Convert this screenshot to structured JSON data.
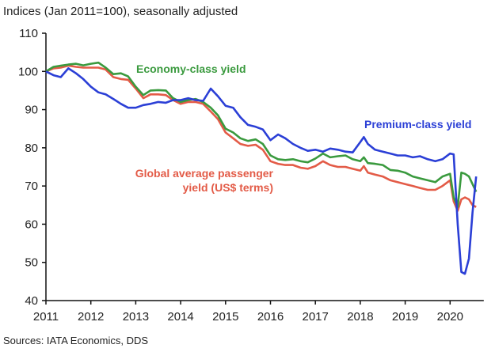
{
  "chart_data": {
    "type": "line",
    "title": "Indices (Jan 2011=100), seasonally adjusted",
    "source": "Sources: IATA Economics, DDS",
    "xlabel": "",
    "ylabel": "",
    "ylim": [
      40,
      110
    ],
    "yticks": [
      40,
      50,
      60,
      70,
      80,
      90,
      100,
      110
    ],
    "xlim": [
      2011.0,
      2020.75
    ],
    "xticks": [
      2011,
      2012,
      2013,
      2014,
      2015,
      2016,
      2017,
      2018,
      2019,
      2020
    ],
    "grid": false,
    "legend": "inline-labels",
    "x": [
      2011.0,
      2011.17,
      2011.33,
      2011.5,
      2011.67,
      2011.83,
      2012.0,
      2012.17,
      2012.33,
      2012.5,
      2012.67,
      2012.83,
      2013.0,
      2013.17,
      2013.33,
      2013.5,
      2013.67,
      2013.83,
      2014.0,
      2014.17,
      2014.33,
      2014.5,
      2014.67,
      2014.83,
      2015.0,
      2015.17,
      2015.33,
      2015.5,
      2015.67,
      2015.83,
      2016.0,
      2016.17,
      2016.33,
      2016.5,
      2016.67,
      2016.83,
      2017.0,
      2017.17,
      2017.33,
      2017.5,
      2017.67,
      2017.83,
      2018.0,
      2018.08,
      2018.17,
      2018.33,
      2018.5,
      2018.67,
      2018.83,
      2019.0,
      2019.17,
      2019.33,
      2019.5,
      2019.67,
      2019.83,
      2020.0,
      2020.08,
      2020.17,
      2020.25,
      2020.33,
      2020.42,
      2020.5,
      2020.58
    ],
    "series": [
      {
        "name": "Economy-class yield",
        "color": "#3a9a3e",
        "label": "Economy-class yield",
        "values": [
          100.0,
          101.2,
          101.5,
          101.8,
          102.0,
          101.6,
          102.0,
          102.3,
          101.0,
          99.3,
          99.5,
          98.7,
          96.0,
          93.8,
          95.0,
          95.1,
          95.0,
          93.0,
          92.0,
          92.5,
          92.8,
          92.0,
          90.5,
          88.5,
          85.0,
          84.0,
          82.5,
          81.8,
          82.2,
          81.0,
          78.0,
          77.0,
          76.8,
          77.0,
          76.5,
          76.2,
          77.2,
          78.5,
          77.5,
          77.8,
          78.0,
          77.0,
          76.5,
          77.5,
          76.0,
          75.8,
          75.5,
          74.2,
          74.0,
          73.5,
          72.5,
          72.0,
          71.5,
          71.0,
          72.5,
          73.2,
          67.0,
          64.5,
          73.5,
          73.2,
          72.5,
          70.5,
          68.5
        ]
      },
      {
        "name": "Global average passenger yield (US$ terms)",
        "color": "#e35b47",
        "label": "Global average passenger yield (US$ terms)",
        "values": [
          100.0,
          100.8,
          101.0,
          101.5,
          101.2,
          101.0,
          101.0,
          101.0,
          100.5,
          98.5,
          98.0,
          97.8,
          95.5,
          93.0,
          94.0,
          94.0,
          93.8,
          92.5,
          91.5,
          92.0,
          92.0,
          91.5,
          89.5,
          87.5,
          84.0,
          82.5,
          81.0,
          80.5,
          80.8,
          79.5,
          76.5,
          75.8,
          75.5,
          75.5,
          74.8,
          74.5,
          75.2,
          76.5,
          75.5,
          75.0,
          75.0,
          74.5,
          74.0,
          75.2,
          73.5,
          73.0,
          72.5,
          71.5,
          71.0,
          70.5,
          70.0,
          69.5,
          69.0,
          69.0,
          70.0,
          71.5,
          66.0,
          63.5,
          66.5,
          67.0,
          66.5,
          65.0,
          64.5
        ]
      },
      {
        "name": "Premium-class yield",
        "color": "#2b3fd6",
        "label": "Premium-class yield",
        "values": [
          100.0,
          99.0,
          98.5,
          100.8,
          99.5,
          98.0,
          96.0,
          94.5,
          94.0,
          92.8,
          91.5,
          90.5,
          90.5,
          91.2,
          91.5,
          92.0,
          91.8,
          92.5,
          92.5,
          93.0,
          92.5,
          92.3,
          95.5,
          93.5,
          91.0,
          90.5,
          88.0,
          86.0,
          85.5,
          84.8,
          82.0,
          83.5,
          82.5,
          81.0,
          80.0,
          79.2,
          79.5,
          79.0,
          79.8,
          79.5,
          79.0,
          78.8,
          81.5,
          82.8,
          81.0,
          79.5,
          79.0,
          78.5,
          78.0,
          78.0,
          77.5,
          77.8,
          77.0,
          76.5,
          77.0,
          78.5,
          78.3,
          60.0,
          47.5,
          47.0,
          51.0,
          63.0,
          72.5
        ]
      }
    ]
  }
}
